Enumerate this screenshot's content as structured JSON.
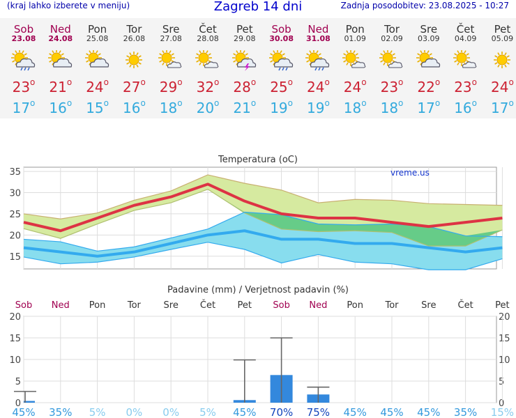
{
  "header": {
    "left": "(kraj lahko izberete v meniju)",
    "title": "Zagreb 14 dni",
    "right": "Zadnja posodobitev: 23.08.2025 - 10:27"
  },
  "degree": "o",
  "days": [
    {
      "name": "Sob",
      "date": "23.08",
      "weekend": true,
      "icon": "sun-cloud-rain-icon",
      "max": 23,
      "min": 17
    },
    {
      "name": "Ned",
      "date": "24.08",
      "weekend": true,
      "icon": "sun-cloud-icon",
      "max": 21,
      "min": 16
    },
    {
      "name": "Pon",
      "date": "25.08",
      "weekend": false,
      "icon": "sun-cloud-icon",
      "max": 24,
      "min": 15
    },
    {
      "name": "Tor",
      "date": "26.08",
      "weekend": false,
      "icon": "sun-icon",
      "max": 27,
      "min": 16
    },
    {
      "name": "Sre",
      "date": "27.08",
      "weekend": false,
      "icon": "sun-small-cloud-icon",
      "max": 29,
      "min": 18
    },
    {
      "name": "Čet",
      "date": "28.08",
      "weekend": false,
      "icon": "sun-small-cloud-icon",
      "max": 32,
      "min": 20
    },
    {
      "name": "Pet",
      "date": "29.08",
      "weekend": false,
      "icon": "sun-cloud-thunder-icon",
      "max": 28,
      "min": 21
    },
    {
      "name": "Sob",
      "date": "30.08",
      "weekend": true,
      "icon": "sun-cloud-rain-icon",
      "max": 25,
      "min": 19
    },
    {
      "name": "Ned",
      "date": "31.08",
      "weekend": true,
      "icon": "sun-cloud-rain-icon",
      "max": 24,
      "min": 19
    },
    {
      "name": "Pon",
      "date": "01.09",
      "weekend": false,
      "icon": "sun-small-cloud-icon",
      "max": 24,
      "min": 18
    },
    {
      "name": "Tor",
      "date": "02.09",
      "weekend": false,
      "icon": "sun-small-cloud-icon",
      "max": 23,
      "min": 18
    },
    {
      "name": "Sre",
      "date": "03.09",
      "weekend": false,
      "icon": "sun-cloud-icon",
      "max": 22,
      "min": 17
    },
    {
      "name": "Čet",
      "date": "04.09",
      "weekend": false,
      "icon": "sun-small-cloud-icon",
      "max": 23,
      "min": 16
    },
    {
      "name": "Pet",
      "date": "05.09",
      "weekend": false,
      "icon": "sun-icon",
      "max": 24,
      "min": 17
    }
  ],
  "chart_data": [
    {
      "type": "line",
      "title": "Temperatura (oC)",
      "watermark": "vreme.us",
      "ylim": [
        12,
        36
      ],
      "yticks": [
        15,
        20,
        25,
        30,
        35
      ],
      "grid": true,
      "categories": [
        "Sob",
        "Ned",
        "Pon",
        "Tor",
        "Sre",
        "Čet",
        "Pet",
        "Sob",
        "Ned",
        "Pon",
        "Tor",
        "Sre",
        "Čet",
        "Pet"
      ],
      "colors": {
        "max": "#dd3344",
        "min": "#33aaee",
        "max_band": "#d6eaa0",
        "min_band": "#88ddee",
        "overlap": "#66cc88"
      },
      "series": [
        {
          "name": "max",
          "values": [
            23,
            21,
            24,
            27,
            29,
            32,
            28,
            25,
            24,
            24,
            23,
            22,
            23,
            24
          ]
        },
        {
          "name": "min",
          "values": [
            17,
            16,
            15,
            16,
            18,
            20,
            21,
            19,
            19,
            18,
            18,
            17,
            16,
            17
          ]
        },
        {
          "name": "max_upper",
          "values": [
            25,
            23.8,
            25.2,
            28.2,
            30.4,
            34.2,
            32.2,
            30.6,
            27.6,
            28.4,
            28.2,
            27.4,
            27.2,
            27
          ]
        },
        {
          "name": "max_lower",
          "values": [
            21.5,
            19.2,
            22.6,
            25.8,
            27.6,
            30.8,
            25.2,
            21.4,
            20.8,
            21,
            20.6,
            17.4,
            17.4,
            21.2
          ]
        },
        {
          "name": "min_upper",
          "values": [
            19,
            18.4,
            16.2,
            17.2,
            19.3,
            21.4,
            25.4,
            24.8,
            22.6,
            22.4,
            22.6,
            22,
            19.8,
            19.6
          ]
        },
        {
          "name": "min_lower",
          "values": [
            14.8,
            13.2,
            13.6,
            14.8,
            16.6,
            18.3,
            16.6,
            13.4,
            15.4,
            13.6,
            13.2,
            11.8,
            11.8,
            14.4
          ]
        }
      ]
    },
    {
      "type": "bar",
      "title": "Padavine (mm) / Verjetnost padavin (%)",
      "ylim": [
        0,
        20
      ],
      "yticks": [
        0,
        5,
        10,
        15,
        20
      ],
      "grid": true,
      "categories": [
        "Sob",
        "Ned",
        "Pon",
        "Tor",
        "Sre",
        "Čet",
        "Pet",
        "Sob",
        "Ned",
        "Pon",
        "Tor",
        "Sre",
        "Čet",
        "Pet"
      ],
      "values": [
        0.4,
        0,
        0,
        0,
        0,
        0,
        0.6,
        6.4,
        1.9,
        0,
        0,
        0,
        0,
        0
      ],
      "error_upper": [
        2.6,
        0,
        0,
        0,
        0,
        0,
        9.9,
        15,
        3.6,
        0,
        0,
        0,
        0,
        0
      ],
      "probability": [
        "45%",
        "35%",
        "5%",
        "0%",
        "0%",
        "5%",
        "45%",
        "70%",
        "75%",
        "45%",
        "45%",
        "45%",
        "35%",
        "15%"
      ],
      "colors": {
        "bar": "#3388dd",
        "error": "#666666"
      }
    }
  ]
}
